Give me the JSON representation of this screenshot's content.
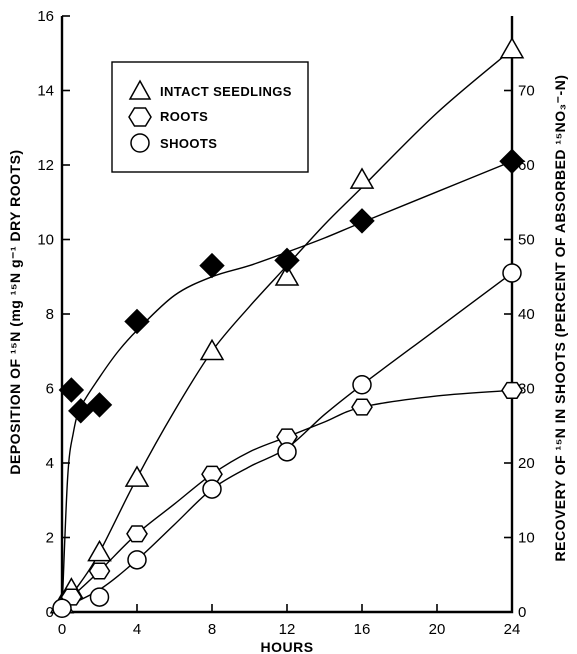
{
  "chart_data": {
    "type": "line",
    "xlabel": "HOURS",
    "ylabel_left": "DEPOSITION OF ¹⁵N (mg ¹⁵N g⁻¹ DRY ROOTS)",
    "ylabel_right": "RECOVERY OF ¹⁵N IN SHOOTS (PERCENT OF ABSORBED ¹⁵NO₃⁻-N)",
    "xlim": [
      0,
      24
    ],
    "ylim_left": [
      0,
      16
    ],
    "ylim_right": [
      0,
      80
    ],
    "x_ticks": [
      0,
      4,
      8,
      12,
      16,
      20,
      24
    ],
    "x_tick_labels": [
      "0",
      "4",
      "8",
      "12",
      "16",
      "20",
      "24"
    ],
    "y_left_ticks": [
      0,
      2,
      4,
      6,
      8,
      10,
      12,
      14,
      16
    ],
    "y_left_tick_labels": [
      "0",
      "2",
      "4",
      "6",
      "8",
      "10",
      "12",
      "14",
      "16"
    ],
    "y_right_ticks": [
      0,
      10,
      20,
      30,
      40,
      50,
      60,
      70
    ],
    "y_right_tick_labels": [
      "0",
      "10",
      "20",
      "30",
      "40",
      "50",
      "60",
      "70"
    ],
    "legend": {
      "position": "top-left",
      "entries": [
        {
          "label": "INTACT SEEDLINGS",
          "marker": "triangle"
        },
        {
          "label": "ROOTS",
          "marker": "hexagon"
        },
        {
          "label": "SHOOTS",
          "marker": "circle"
        }
      ]
    },
    "series": [
      {
        "name": "INTACT SEEDLINGS",
        "marker": "triangle",
        "axis": "left",
        "points": [
          [
            0,
            0.2
          ],
          [
            0.5,
            0.6
          ],
          [
            2,
            1.6
          ],
          [
            4,
            3.6
          ],
          [
            8,
            7.0
          ],
          [
            12,
            9.0
          ],
          [
            16,
            11.6
          ],
          [
            24,
            15.1
          ]
        ],
        "curve": [
          [
            0,
            0.15
          ],
          [
            1,
            0.8
          ],
          [
            2,
            1.6
          ],
          [
            4,
            3.6
          ],
          [
            6,
            5.4
          ],
          [
            8,
            7.0
          ],
          [
            10,
            8.2
          ],
          [
            12,
            9.3
          ],
          [
            14,
            10.4
          ],
          [
            16,
            11.4
          ],
          [
            20,
            13.4
          ],
          [
            24,
            15.1
          ]
        ]
      },
      {
        "name": "ROOTS",
        "marker": "hexagon",
        "axis": "left",
        "points": [
          [
            0.5,
            0.4
          ],
          [
            2,
            1.1
          ],
          [
            4,
            2.1
          ],
          [
            8,
            3.7
          ],
          [
            12,
            4.7
          ],
          [
            16,
            5.5
          ],
          [
            24,
            5.95
          ]
        ],
        "curve": [
          [
            0,
            0.2
          ],
          [
            0.5,
            0.4
          ],
          [
            2,
            1.1
          ],
          [
            4,
            2.1
          ],
          [
            6,
            2.9
          ],
          [
            8,
            3.7
          ],
          [
            10,
            4.3
          ],
          [
            12,
            4.7
          ],
          [
            14,
            5.1
          ],
          [
            16,
            5.5
          ],
          [
            20,
            5.8
          ],
          [
            24,
            5.95
          ]
        ]
      },
      {
        "name": "SHOOTS",
        "marker": "circle",
        "axis": "left",
        "points": [
          [
            0,
            0.1
          ],
          [
            2,
            0.4
          ],
          [
            4,
            1.4
          ],
          [
            8,
            3.3
          ],
          [
            12,
            4.3
          ],
          [
            16,
            6.1
          ],
          [
            24,
            9.1
          ]
        ],
        "curve": [
          [
            0,
            0.1
          ],
          [
            2,
            0.6
          ],
          [
            4,
            1.4
          ],
          [
            6,
            2.35
          ],
          [
            8,
            3.3
          ],
          [
            10,
            3.9
          ],
          [
            12,
            4.4
          ],
          [
            14,
            5.3
          ],
          [
            16,
            6.1
          ],
          [
            20,
            7.6
          ],
          [
            24,
            9.1
          ]
        ]
      },
      {
        "name": "",
        "marker": "diamond-filled",
        "axis": "right",
        "points": [
          [
            0.5,
            29.8
          ],
          [
            1,
            27.0
          ],
          [
            2,
            27.8
          ],
          [
            4,
            39.0
          ],
          [
            8,
            46.5
          ],
          [
            12,
            47.2
          ],
          [
            16,
            52.5
          ],
          [
            24,
            60.5
          ]
        ],
        "curve": [
          [
            0,
            0
          ],
          [
            0.3,
            18
          ],
          [
            0.6,
            24
          ],
          [
            1,
            27.5
          ],
          [
            2,
            31.5
          ],
          [
            3,
            35
          ],
          [
            4,
            37.8
          ],
          [
            6,
            42.5
          ],
          [
            8,
            45
          ],
          [
            10,
            46.5
          ],
          [
            12,
            48.3
          ],
          [
            14,
            50.2
          ],
          [
            16,
            52.3
          ],
          [
            20,
            56.4
          ],
          [
            24,
            60.5
          ]
        ]
      }
    ]
  }
}
